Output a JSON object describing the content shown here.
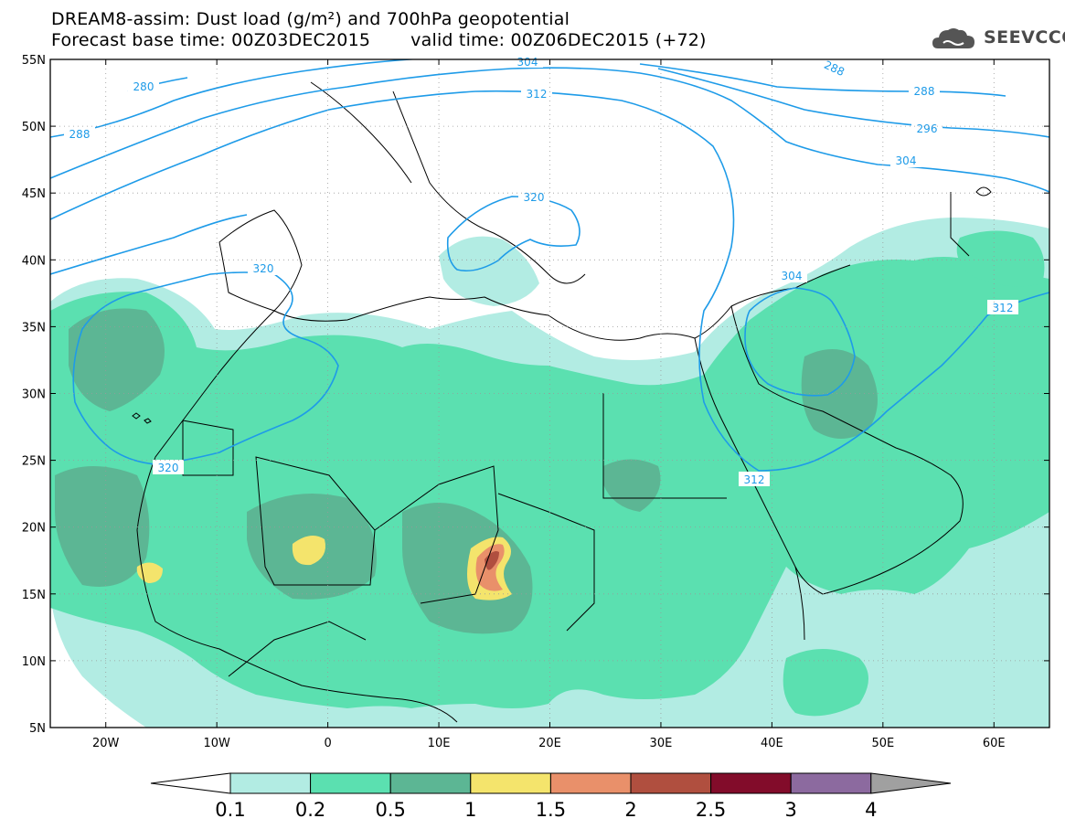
{
  "title": {
    "line1": "DREAM8-assim: Dust load (g/m²) and 700hPa geopotential",
    "base_time": "Forecast base time: 00Z03DEC2015",
    "valid_time": "valid time: 00Z06DEC2015 (+72)"
  },
  "logo": {
    "text": "SEEVCCC",
    "icon": "cloud-icon",
    "color": "#555555"
  },
  "map": {
    "lon_range": [
      -25,
      65
    ],
    "lat_range": [
      5,
      55
    ],
    "lat_labels": [
      "55N",
      "50N",
      "45N",
      "40N",
      "35N",
      "30N",
      "25N",
      "20N",
      "15N",
      "10N",
      "5N"
    ],
    "lon_labels": [
      "20W",
      "10W",
      "0",
      "10E",
      "20E",
      "30E",
      "40E",
      "50E",
      "60E"
    ],
    "contour_color": "#1e9be8",
    "contour_labels": [
      "280",
      "288",
      "288",
      "288",
      "296",
      "304",
      "304",
      "304",
      "312",
      "312",
      "312",
      "320",
      "320",
      "320"
    ]
  },
  "colorbar": {
    "labels": [
      "0.1",
      "0.2",
      "0.5",
      "1",
      "1.5",
      "2",
      "2.5",
      "3",
      "4"
    ],
    "colors": [
      "#ffffff",
      "#b2ece3",
      "#5be0b0",
      "#5cb694",
      "#f4e46c",
      "#e9906a",
      "#b04f3f",
      "#820c2a",
      "#8c6a9f",
      "#a0a0a0"
    ]
  }
}
